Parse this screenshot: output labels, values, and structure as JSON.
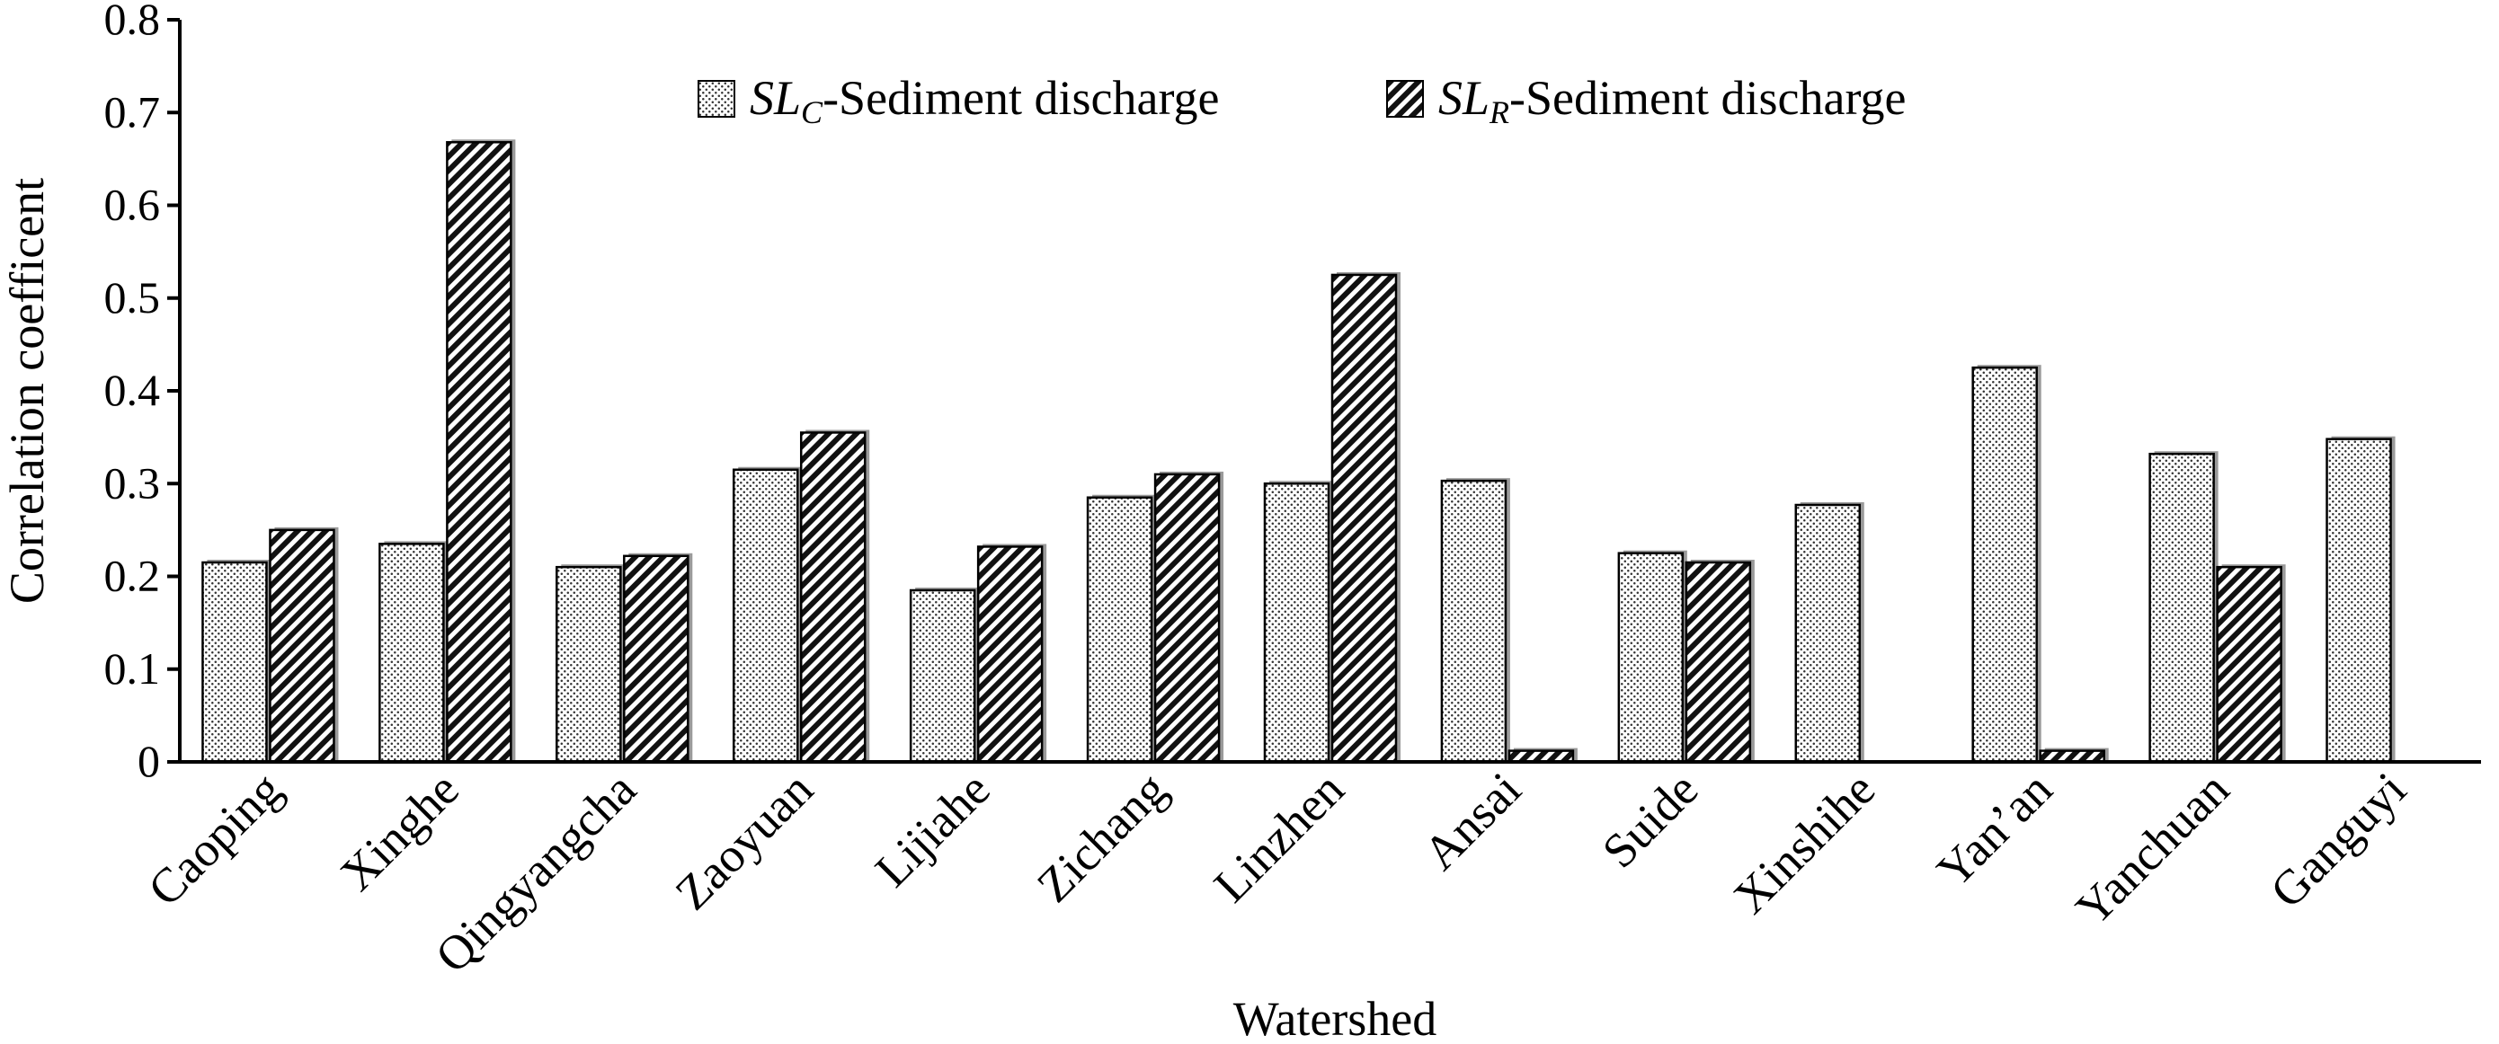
{
  "chart_data": {
    "type": "bar",
    "xlabel": "Watershed",
    "ylabel": "Correlation coefficent",
    "ylim": [
      0,
      0.8
    ],
    "yticks": [
      "0",
      "0.1",
      "0.2",
      "0.3",
      "0.4",
      "0.5",
      "0.6",
      "0.7",
      "0.8"
    ],
    "grid": false,
    "legend_position": "top-center",
    "categories": [
      "Caoping",
      "Xinghe",
      "Qingyangcha",
      "Zaoyuan",
      "Lijiahe",
      "Zichang",
      "Linzhen",
      "Ansai",
      "Suide",
      "Xinshihe",
      "Yan’an",
      "Yanchuan",
      "Ganguyi"
    ],
    "series": [
      {
        "legend_symbol": "SL",
        "legend_subscript": "C",
        "legend_rest": "-Sediment discharge",
        "pattern": "dots",
        "values": [
          0.215,
          0.235,
          0.21,
          0.315,
          0.185,
          0.285,
          0.3,
          0.303,
          0.225,
          0.277,
          0.425,
          0.332,
          0.348
        ]
      },
      {
        "legend_symbol": "SL",
        "legend_subscript": "R",
        "legend_rest": "-Sediment discharge",
        "pattern": "hatch",
        "values": [
          0.25,
          0.668,
          0.222,
          0.355,
          0.232,
          0.31,
          0.525,
          0.012,
          0.215,
          null,
          0.012,
          0.21,
          null
        ]
      }
    ]
  }
}
